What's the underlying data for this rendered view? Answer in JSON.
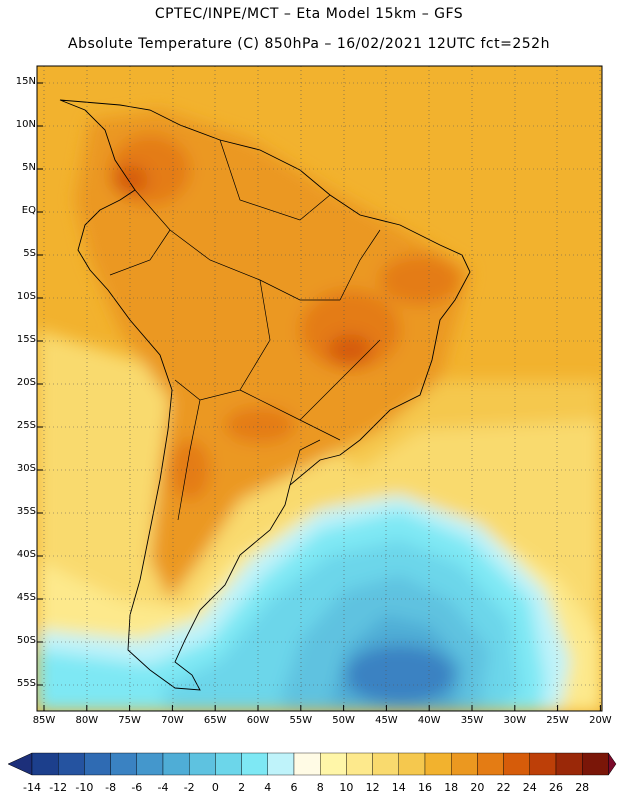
{
  "header": {
    "line1": "CPTEC/INPE/MCT – Eta Model 15km – GFS",
    "line2": "Absolute Temperature (C) 850hPa – 16/02/2021 12UTC fct=252h"
  },
  "map": {
    "lat_labels": [
      "15N",
      "10N",
      "5N",
      "EQ",
      "5S",
      "10S",
      "15S",
      "20S",
      "25S",
      "30S",
      "35S",
      "40S",
      "45S",
      "50S",
      "55S"
    ],
    "lon_labels": [
      "85W",
      "80W",
      "75W",
      "70W",
      "65W",
      "60W",
      "55W",
      "50W",
      "45W",
      "40W",
      "35W",
      "30W",
      "25W",
      "20W"
    ],
    "grid": "dotted"
  },
  "colorbar": {
    "labels": [
      "-14",
      "-12",
      "-10",
      "-8",
      "-6",
      "-4",
      "-2",
      "0",
      "2",
      "4",
      "6",
      "8",
      "10",
      "12",
      "14",
      "16",
      "18",
      "20",
      "22",
      "24",
      "26",
      "28"
    ],
    "colors": [
      "#1c3f8c",
      "#2553a0",
      "#2f6bb3",
      "#3a82c2",
      "#4497cc",
      "#4fadd6",
      "#5ec2e0",
      "#6cd6ea",
      "#7ee8f4",
      "#bff3fa",
      "#fffbe5",
      "#fff6a8",
      "#fde98c",
      "#f9da6e",
      "#f5c84e",
      "#f2b22e",
      "#eb9820",
      "#e47c14",
      "#d65c0a",
      "#bd3f08",
      "#9a2808",
      "#7a1608"
    ],
    "left_arrow_color": "#1c2f7a",
    "right_arrow_color": "#7a0a2a"
  }
}
